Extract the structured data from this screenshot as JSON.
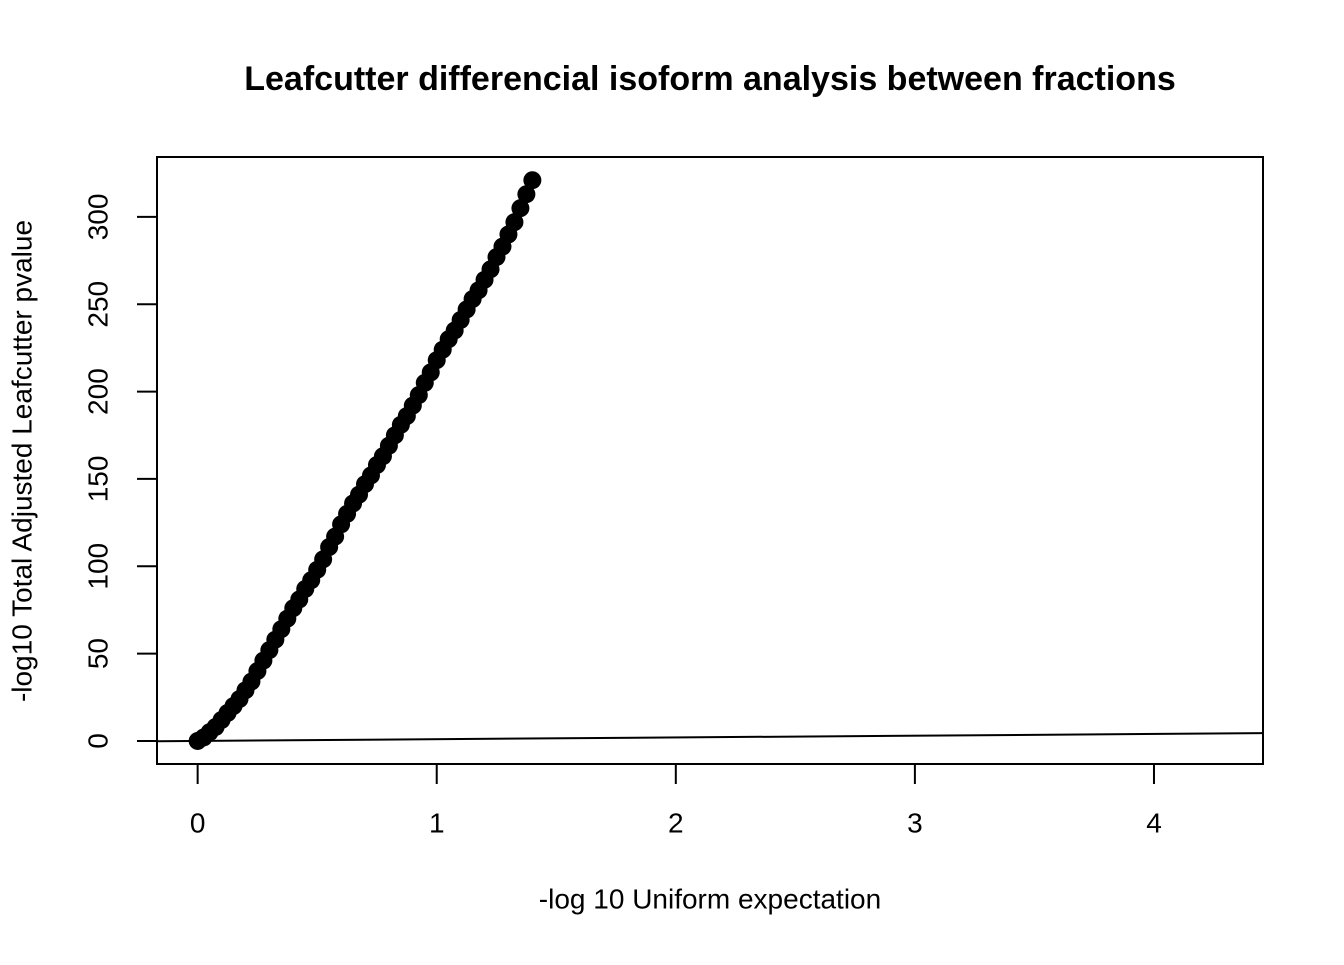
{
  "chart_data": {
    "type": "scatter",
    "title": "Leafcutter differencial isoform analysis between fractions",
    "x_label": "-log 10 Uniform expectation",
    "y_label": "-log10 Total Adjusted Leafcutter pvalue",
    "x": [
      0,
      0.025,
      0.05,
      0.075,
      0.1,
      0.125,
      0.15,
      0.175,
      0.2,
      0.225,
      0.25,
      0.275,
      0.3,
      0.325,
      0.35,
      0.375,
      0.4,
      0.425,
      0.45,
      0.475,
      0.5,
      0.525,
      0.55,
      0.575,
      0.6,
      0.625,
      0.65,
      0.675,
      0.7,
      0.725,
      0.75,
      0.775,
      0.8,
      0.825,
      0.85,
      0.875,
      0.9,
      0.925,
      0.95,
      0.975,
      1.0,
      1.025,
      1.05,
      1.075,
      1.1,
      1.125,
      1.15,
      1.175,
      1.2,
      1.225,
      1.25,
      1.275,
      1.3,
      1.325,
      1.35,
      1.375,
      1.4
    ],
    "values": [
      0,
      2,
      5,
      8,
      12,
      16,
      20,
      24,
      29,
      34,
      40,
      46,
      52,
      58,
      64,
      70,
      76,
      81,
      87,
      92,
      98,
      104,
      111,
      117,
      124,
      130,
      136,
      141,
      147,
      152,
      158,
      163,
      169,
      175,
      181,
      186,
      192,
      198,
      205,
      211,
      218,
      224,
      230,
      235,
      241,
      247,
      253,
      258,
      264,
      270,
      277,
      283,
      290,
      297,
      305,
      313,
      321
    ],
    "color": "#000000",
    "reference_line": {
      "intercept": 0,
      "slope": 1
    },
    "xlim": [
      -0.17,
      4.456
    ],
    "ylim": [
      -13.2,
      334.3
    ],
    "xticks": [
      0,
      1,
      2,
      3,
      4
    ],
    "yticks": [
      0,
      50,
      100,
      150,
      200,
      250,
      300
    ]
  }
}
